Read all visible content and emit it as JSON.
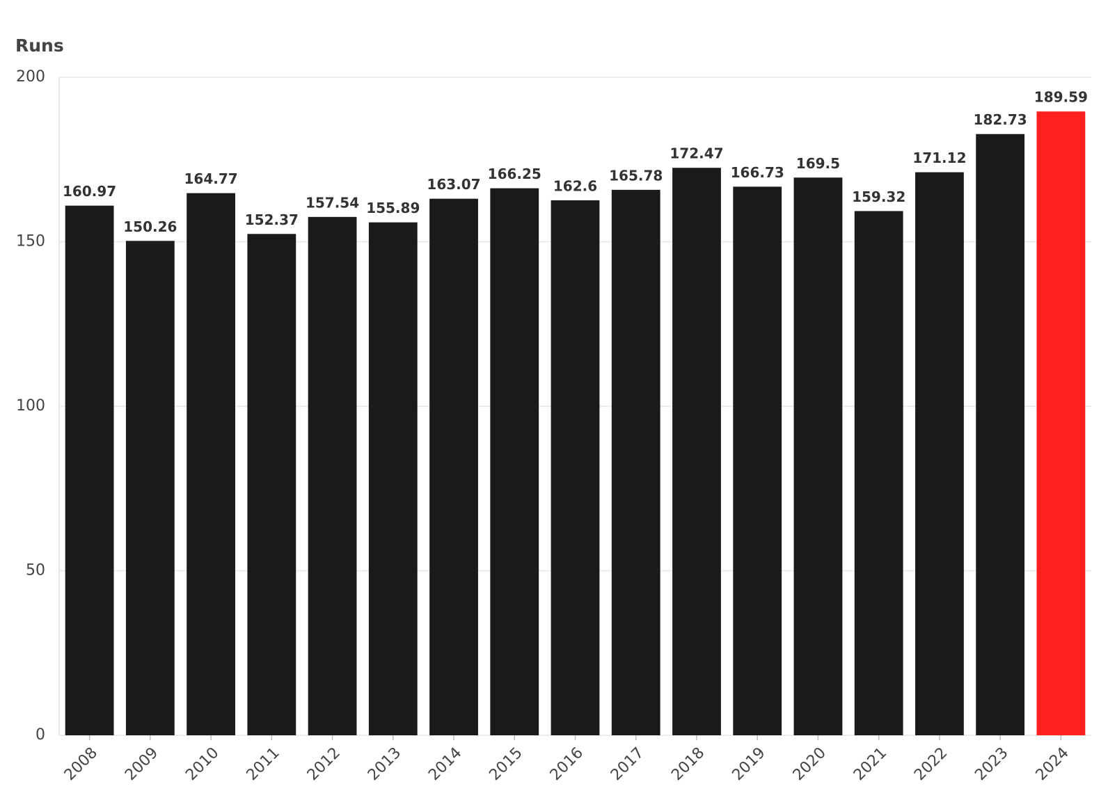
{
  "chart_data": {
    "type": "bar",
    "y_axis_label": "Runs",
    "categories": [
      "2008",
      "2009",
      "2010",
      "2011",
      "2012",
      "2013",
      "2014",
      "2015",
      "2016",
      "2017",
      "2018",
      "2019",
      "2020",
      "2021",
      "2022",
      "2023",
      "2024"
    ],
    "values": [
      160.97,
      150.26,
      164.77,
      152.37,
      157.54,
      155.89,
      163.07,
      166.25,
      162.6,
      165.78,
      172.47,
      166.73,
      169.5,
      159.32,
      171.12,
      182.73,
      189.59
    ],
    "colors": [
      "#1a1a1a",
      "#1a1a1a",
      "#1a1a1a",
      "#1a1a1a",
      "#1a1a1a",
      "#1a1a1a",
      "#1a1a1a",
      "#1a1a1a",
      "#1a1a1a",
      "#1a1a1a",
      "#1a1a1a",
      "#1a1a1a",
      "#1a1a1a",
      "#1a1a1a",
      "#1a1a1a",
      "#1a1a1a",
      "#ff1f1f"
    ],
    "ylim": [
      0,
      200
    ],
    "yticks": [
      0,
      50,
      100,
      150,
      200
    ],
    "grid": true
  }
}
